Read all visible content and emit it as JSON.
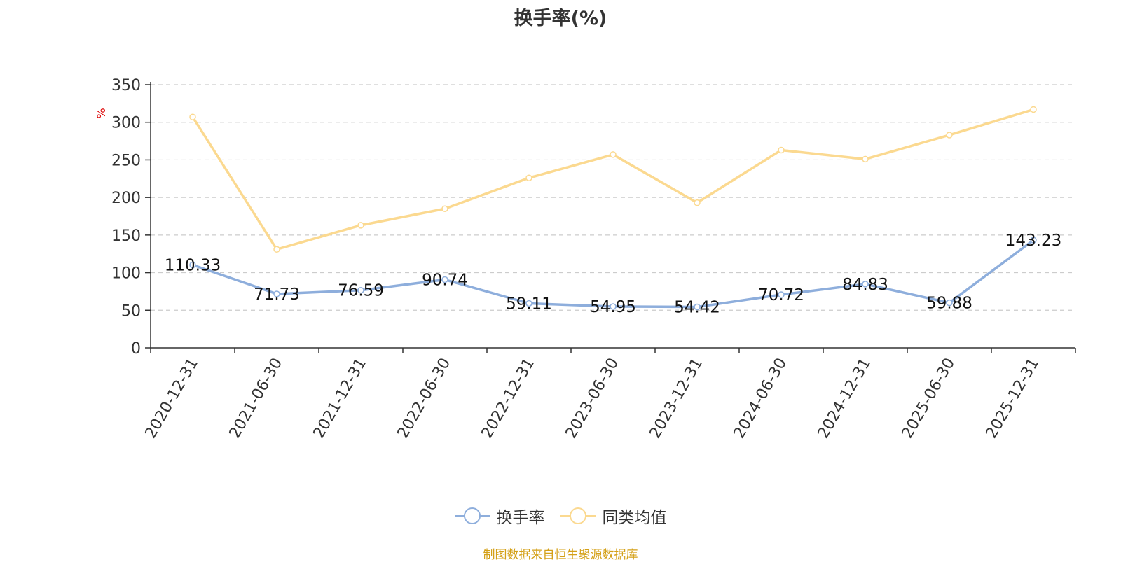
{
  "title": "换手率(%)",
  "source": "制图数据来自恒生聚源数据库",
  "colors": {
    "series1": "#8eaedc",
    "series2": "#fbd990",
    "source_text": "#d4a017",
    "unit_text": "#dd0000"
  },
  "chart_data": {
    "type": "line",
    "title": "换手率(%)",
    "ylabel": "%",
    "ylim": [
      0,
      350
    ],
    "yticks": [
      0,
      50,
      100,
      150,
      200,
      250,
      300,
      350
    ],
    "grid": true,
    "legend_position": "bottom",
    "categories": [
      "2020-12-31",
      "2021-06-30",
      "2021-12-31",
      "2022-06-30",
      "2022-12-31",
      "2023-06-30",
      "2023-12-31",
      "2024-06-30",
      "2024-12-31",
      "2025-06-30",
      "2025-12-31"
    ],
    "series": [
      {
        "name": "换手率",
        "values": [
          110.33,
          71.73,
          76.59,
          90.74,
          59.11,
          54.95,
          54.42,
          70.72,
          84.83,
          59.88,
          143.23
        ],
        "data_labels": [
          "110.33",
          "71.73",
          "76.59",
          "90.74",
          "59.11",
          "54.95",
          "54.42",
          "70.72",
          "84.83",
          "59.88",
          "143.23"
        ]
      },
      {
        "name": "同类均值",
        "values": [
          307,
          131,
          163,
          185,
          226,
          257,
          193,
          263,
          251,
          283,
          317
        ]
      }
    ]
  }
}
